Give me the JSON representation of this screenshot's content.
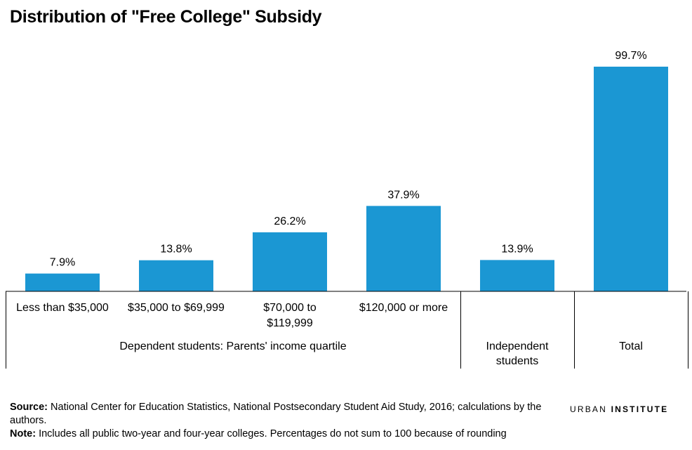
{
  "title": "Distribution of \"Free College\" Subsidy",
  "colors": {
    "bar": "#1b97d3",
    "axis": "#000000"
  },
  "chart_data": {
    "type": "bar",
    "title": "Distribution of \"Free College\" Subsidy",
    "categories": [
      "Less than $35,000",
      "$35,000 to $69,999",
      "$70,000 to $119,999",
      "$120,000 or more",
      "Independent students",
      "Total"
    ],
    "values": [
      7.9,
      13.8,
      26.2,
      37.9,
      13.9,
      99.7
    ],
    "value_labels": [
      "7.9%",
      "13.8%",
      "26.2%",
      "37.9%",
      "13.9%",
      "99.7%"
    ],
    "tick_label_lines": [
      [
        "Less than $35,000"
      ],
      [
        "$35,000 to $69,999"
      ],
      [
        "$70,000 to",
        "$119,999"
      ],
      [
        "$120,000 or more"
      ],
      [],
      []
    ],
    "groups": [
      {
        "label_lines": [
          "Dependent students: Parents' income quartile"
        ],
        "members": [
          0,
          1,
          2,
          3
        ]
      },
      {
        "label_lines": [
          "Independent",
          "students"
        ],
        "members": [
          4
        ]
      },
      {
        "label_lines": [
          "Total"
        ],
        "members": [
          5
        ]
      }
    ],
    "ylim": [
      0,
      100
    ],
    "grid": false,
    "xlabel": "",
    "ylabel": ""
  },
  "footer": {
    "source_label": "Source:",
    "source_text": "National Center for Education Statistics, National Postsecondary Student Aid Study, 2016; calculations by the authors.",
    "note_label": "Note:",
    "note_text": "Includes all public two-year and four-year colleges. Percentages do not sum to 100 because of rounding"
  },
  "brand": {
    "part1": "URBAN",
    "part2": "INSTITUTE"
  }
}
